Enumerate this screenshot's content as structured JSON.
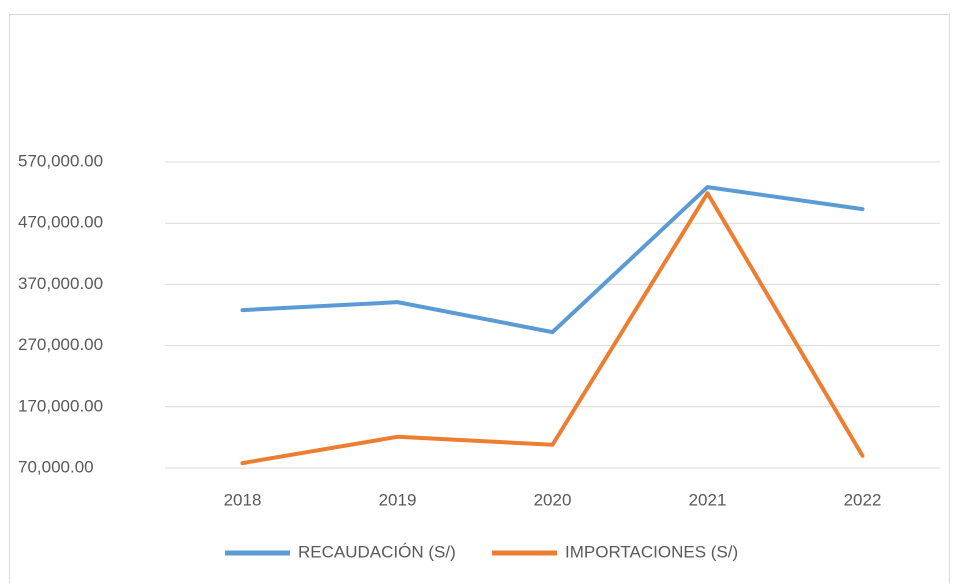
{
  "chart_data": {
    "type": "line",
    "categories": [
      "2018",
      "2019",
      "2020",
      "2021",
      "2022"
    ],
    "series": [
      {
        "name": "RECAUDACIÓN (S/)",
        "color": "#5b9bd5",
        "values": [
          328000,
          341000,
          292000,
          529000,
          493000
        ]
      },
      {
        "name": "IMPORTACIONES (S/)",
        "color": "#ed7d31",
        "values": [
          78000,
          121000,
          108000,
          519000,
          90000
        ]
      }
    ],
    "ylim": [
      70000,
      570000
    ],
    "yticks": [
      {
        "value": 70000,
        "label": "70,000.00"
      },
      {
        "value": 170000,
        "label": "170,000.00"
      },
      {
        "value": 270000,
        "label": "270,000.00"
      },
      {
        "value": 370000,
        "label": "370,000.00"
      },
      {
        "value": 470000,
        "label": "470,000.00"
      },
      {
        "value": 570000,
        "label": "570,000.00"
      }
    ],
    "grid": true,
    "legend": "bottom"
  }
}
